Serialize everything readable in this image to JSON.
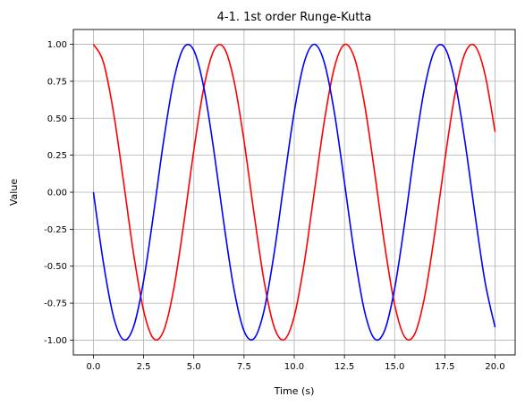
{
  "chart_data": {
    "type": "line",
    "title": "4-1. 1st order Runge-Kutta",
    "xlabel": "Time (s)",
    "ylabel": "Value",
    "xlim": [
      -1.0,
      21.0
    ],
    "ylim": [
      -1.1,
      1.1
    ],
    "xticks": [
      "0.0",
      "2.5",
      "5.0",
      "7.5",
      "10.0",
      "12.5",
      "15.0",
      "17.5",
      "20.0"
    ],
    "yticks": [
      "-1.00",
      "-0.75",
      "-0.50",
      "-0.25",
      "0.00",
      "0.25",
      "0.50",
      "0.75",
      "1.00"
    ],
    "grid": true,
    "series": [
      {
        "color": "#ff0000",
        "x": [
          0,
          0.5,
          1,
          1.5,
          2,
          2.5,
          3,
          3.5,
          4,
          4.5,
          5,
          5.5,
          6,
          6.5,
          7,
          7.5,
          8,
          8.5,
          9,
          9.5,
          10,
          10.5,
          11,
          11.5,
          12,
          12.5,
          13,
          13.5,
          14,
          14.5,
          15,
          15.5,
          16,
          16.5,
          17,
          17.5,
          18,
          18.5,
          19,
          19.5,
          20
        ],
        "y": [
          1.0,
          0.878,
          0.54,
          0.071,
          -0.416,
          -0.801,
          -0.99,
          -0.936,
          -0.654,
          -0.211,
          0.284,
          0.709,
          0.96,
          0.977,
          0.754,
          0.347,
          -0.146,
          -0.602,
          -0.911,
          -0.997,
          -0.839,
          -0.476,
          0.004,
          0.483,
          0.844,
          0.998,
          0.907,
          0.595,
          0.137,
          -0.355,
          -0.76,
          -0.979,
          -0.958,
          -0.702,
          -0.275,
          0.219,
          0.66,
          0.939,
          0.989,
          0.796,
          0.408
        ]
      },
      {
        "color": "#0000ff",
        "x": [
          0,
          0.5,
          1,
          1.5,
          2,
          2.5,
          3,
          3.5,
          4,
          4.5,
          5,
          5.5,
          6,
          6.5,
          7,
          7.5,
          8,
          8.5,
          9,
          9.5,
          10,
          10.5,
          11,
          11.5,
          12,
          12.5,
          13,
          13.5,
          14,
          14.5,
          15,
          15.5,
          16,
          16.5,
          17,
          17.5,
          18,
          18.5,
          19,
          19.5,
          20
        ],
        "y": [
          0.0,
          -0.479,
          -0.841,
          -0.997,
          -0.909,
          -0.598,
          -0.141,
          0.351,
          0.757,
          0.978,
          0.959,
          0.706,
          0.279,
          -0.215,
          -0.657,
          -0.938,
          -0.989,
          -0.798,
          -0.412,
          0.075,
          0.544,
          0.88,
          1.0,
          0.875,
          0.537,
          0.066,
          -0.42,
          -0.804,
          -0.991,
          -0.935,
          -0.65,
          -0.207,
          0.288,
          0.712,
          0.961,
          0.976,
          0.751,
          0.342,
          -0.15,
          -0.606,
          -0.913
        ]
      }
    ]
  }
}
